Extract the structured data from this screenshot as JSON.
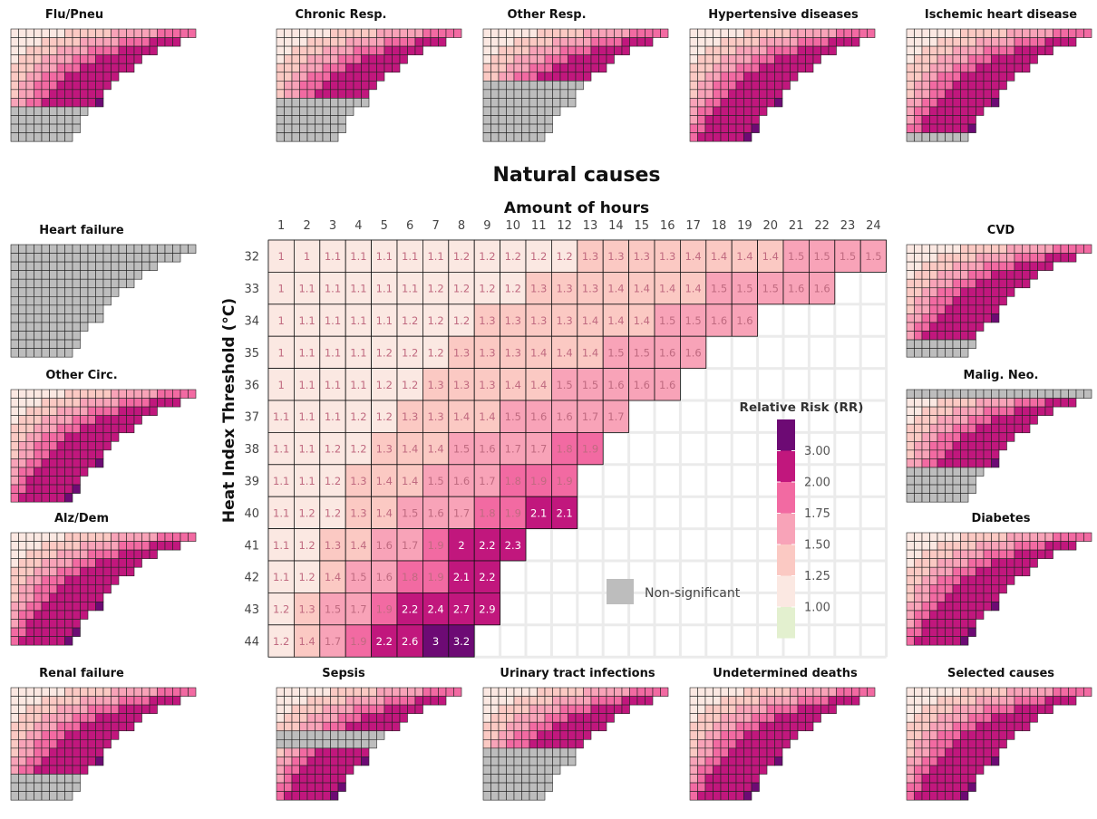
{
  "chart_data": {
    "type": "heatmap",
    "title": "Natural causes",
    "xlabel": "Amount of hours",
    "ylabel": "Heat Index Threshold (°C)",
    "x_ticks": [
      1,
      2,
      3,
      4,
      5,
      6,
      7,
      8,
      9,
      10,
      11,
      12,
      13,
      14,
      15,
      16,
      17,
      18,
      19,
      20,
      21,
      22,
      23,
      24
    ],
    "y_ticks": [
      32,
      33,
      34,
      35,
      36,
      37,
      38,
      39,
      40,
      41,
      42,
      43,
      44
    ],
    "values": [
      [
        1,
        1,
        1.1,
        1.1,
        1.1,
        1.1,
        1.1,
        1.2,
        1.2,
        1.2,
        1.2,
        1.2,
        1.3,
        1.3,
        1.3,
        1.3,
        1.4,
        1.4,
        1.4,
        1.4,
        1.5,
        1.5,
        1.5,
        1.5
      ],
      [
        1,
        1.1,
        1.1,
        1.1,
        1.1,
        1.1,
        1.2,
        1.2,
        1.2,
        1.2,
        1.3,
        1.3,
        1.3,
        1.4,
        1.4,
        1.4,
        1.4,
        1.5,
        1.5,
        1.5,
        1.6,
        1.6
      ],
      [
        1,
        1.1,
        1.1,
        1.1,
        1.1,
        1.2,
        1.2,
        1.2,
        1.3,
        1.3,
        1.3,
        1.3,
        1.4,
        1.4,
        1.4,
        1.5,
        1.5,
        1.6,
        1.6
      ],
      [
        1,
        1.1,
        1.1,
        1.1,
        1.2,
        1.2,
        1.2,
        1.3,
        1.3,
        1.3,
        1.4,
        1.4,
        1.4,
        1.5,
        1.5,
        1.6,
        1.6
      ],
      [
        1,
        1.1,
        1.1,
        1.1,
        1.2,
        1.2,
        1.3,
        1.3,
        1.3,
        1.4,
        1.4,
        1.5,
        1.5,
        1.6,
        1.6,
        1.6
      ],
      [
        1.1,
        1.1,
        1.1,
        1.2,
        1.2,
        1.3,
        1.3,
        1.4,
        1.4,
        1.5,
        1.6,
        1.6,
        1.7,
        1.7
      ],
      [
        1.1,
        1.1,
        1.2,
        1.2,
        1.3,
        1.4,
        1.4,
        1.5,
        1.6,
        1.7,
        1.7,
        1.8,
        1.9
      ],
      [
        1.1,
        1.1,
        1.2,
        1.3,
        1.4,
        1.4,
        1.5,
        1.6,
        1.7,
        1.8,
        1.9,
        1.9
      ],
      [
        1.1,
        1.2,
        1.2,
        1.3,
        1.4,
        1.5,
        1.6,
        1.7,
        1.8,
        1.9,
        2.1,
        2.1
      ],
      [
        1.1,
        1.2,
        1.3,
        1.4,
        1.6,
        1.7,
        1.9,
        2,
        2.2,
        2.3
      ],
      [
        1.1,
        1.2,
        1.4,
        1.5,
        1.6,
        1.8,
        1.9,
        2.1,
        2.2
      ],
      [
        1.2,
        1.3,
        1.5,
        1.7,
        1.9,
        2.2,
        2.4,
        2.7,
        2.9
      ],
      [
        1.2,
        1.4,
        1.7,
        1.9,
        2.2,
        2.6,
        3,
        3.2
      ]
    ],
    "legend": {
      "title": "Relative Risk (RR)",
      "labels": [
        "3.00",
        "2.00",
        "1.75",
        "1.50",
        "1.25",
        "1.00"
      ],
      "colors": [
        "#6d0a74",
        "#c1177d",
        "#f26aa2",
        "#f8a3b8",
        "#fbc9c3",
        "#fbe8e2",
        "#e3f0cf"
      ],
      "nonsig_label": "Non-significant",
      "nonsig_color": "#bdbdbd",
      "placement": "inside-right"
    },
    "grid": true
  },
  "panels": [
    {
      "title": "Flu/Pneu",
      "sig_rows": 9
    },
    {
      "title": "Chronic Resp.",
      "sig_rows": 8
    },
    {
      "title": "Other Resp.",
      "sig_rows": 6
    },
    {
      "title": "Hypertensive diseases",
      "sig_rows": 13
    },
    {
      "title": "Ischemic heart disease",
      "sig_rows": 12
    },
    {
      "title": "Heart failure",
      "sig_rows": 0
    },
    {
      "title": "CVD",
      "sig_rows": 11
    },
    {
      "title": "Other Circ.",
      "sig_rows": 13
    },
    {
      "title": "Malig. Neo.",
      "sig_rows": 8,
      "sig_start": 1
    },
    {
      "title": "Alz/Dem",
      "sig_rows": 13
    },
    {
      "title": "Diabetes",
      "sig_rows": 13
    },
    {
      "title": "Renal failure",
      "sig_rows": 10
    },
    {
      "title": "Sepsis",
      "sig_rows": 13,
      "nonsig_band": [
        5,
        6
      ]
    },
    {
      "title": "Urinary tract infections",
      "sig_rows": 7
    },
    {
      "title": "Undetermined deaths",
      "sig_rows": 13
    },
    {
      "title": "Selected causes",
      "sig_rows": 13
    }
  ]
}
